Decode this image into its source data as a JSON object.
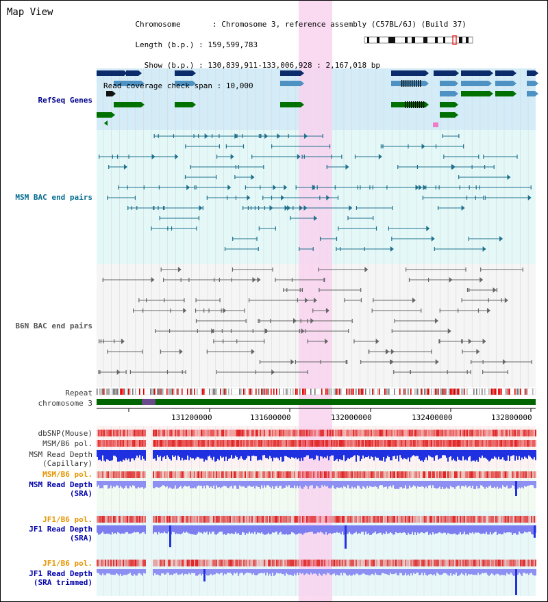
{
  "header": {
    "title": "Map View",
    "info": [
      {
        "key": "Chromosome",
        "value": "Chromosome 3, reference assembly (C57BL/6J) (Build 37)"
      },
      {
        "key": "Length (b.p.)",
        "value": "159,599,783"
      },
      {
        "key": "Show (b.p.)",
        "value": "130,839,911-133,006,928 : 2,167,018 bp"
      },
      {
        "key": "Read coverage check span",
        "value": "10,000"
      }
    ]
  },
  "tracks": {
    "refseq": "RefSeq Genes",
    "msm_bac": "MSM BAC end pairs",
    "b6n_bac": "B6N BAC end pairs",
    "repeat": "Repeat",
    "chromosome": "chromosome 3",
    "dbsnp": "dbSNP(Mouse)",
    "msm_b6_pol_1": "MSM/B6 pol.",
    "msm_read_depth_cap_1": "MSM Read Depth",
    "msm_read_depth_cap_2": "(Capillary)",
    "msm_b6_pol_2": "MSM/B6 pol.",
    "msm_read_depth_sra_1": "MSM Read Depth",
    "msm_read_depth_sra_2": "(SRA)",
    "jf1_b6_pol_1": "JF1/B6 pol.",
    "jf1_read_depth_sra_1": "JF1 Read Depth",
    "jf1_read_depth_sra_2": "(SRA)",
    "jf1_b6_pol_2": "JF1/B6 pol.",
    "jf1_read_depth_trim_1": "JF1 Read Depth",
    "jf1_read_depth_trim_2": "(SRA trimmed)"
  },
  "axis": {
    "ticks": [
      "131200000",
      "131600000",
      "132000000",
      "132400000",
      "132800000"
    ]
  },
  "colors": {
    "refseq_bg": "#d4ecf7",
    "msm_bg": "#e4f8f8",
    "b6n_bg": "#f5f5f5",
    "highlight": "#f8d4ef",
    "gene_navy": "#0b2b6a",
    "gene_blue": "#4d92c2",
    "gene_green": "#007000",
    "chrom_green": "#006400",
    "depth_dark": "#1a2edc",
    "depth_light": "#7c7ef0"
  }
}
